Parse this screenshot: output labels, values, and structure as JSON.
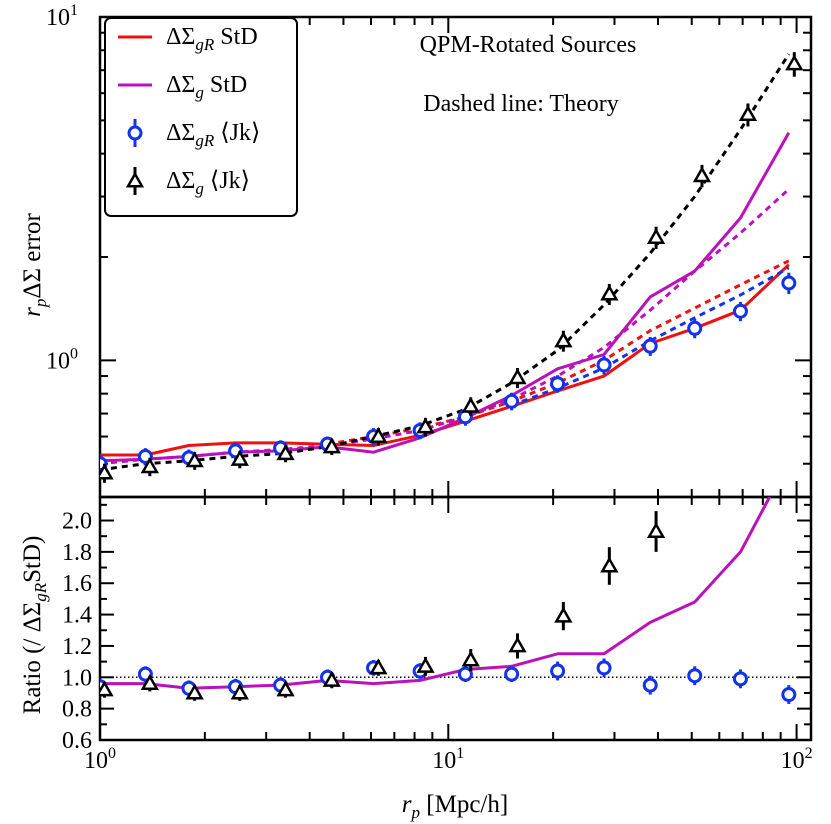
{
  "chart_data": [
    {
      "type": "line",
      "xscale": "log",
      "yscale": "log",
      "xlim": [
        1,
        110
      ],
      "ylim": [
        0.4,
        10
      ],
      "ylabel": "r_pΔΣ error",
      "ytick_labels": [
        {
          "base": "10",
          "exp": "0",
          "value": 1
        },
        {
          "base": "10",
          "exp": "1",
          "value": 10
        }
      ],
      "annotations": [
        "QPM-Rotated Sources",
        "Dashed line: Theory"
      ],
      "legend_position": "top-left",
      "legend": [
        {
          "label": "ΔΣ",
          "sub": "gR",
          "tail": " StD",
          "color": "#ee1111",
          "marker": "line"
        },
        {
          "label": "ΔΣ",
          "sub": "g",
          "tail": " StD",
          "color": "#bb11bb",
          "marker": "line"
        },
        {
          "label": "ΔΣ",
          "sub": "gR",
          "tail": " ⟨Jk⟩",
          "color": "#1133ee",
          "marker": "circle"
        },
        {
          "label": "ΔΣ",
          "sub": "g",
          "tail": " ⟨Jk⟩",
          "color": "#000000",
          "marker": "triangle"
        }
      ],
      "series": [
        {
          "name": "ΔΣgR StD",
          "style": "solid",
          "color": "#ee1111",
          "x": [
            1.0,
            1.35,
            1.8,
            2.45,
            3.3,
            4.5,
            6.1,
            8.3,
            11.2,
            15.2,
            20.6,
            28,
            38,
            51,
            69,
            95
          ],
          "y": [
            0.53,
            0.53,
            0.565,
            0.575,
            0.575,
            0.57,
            0.565,
            0.605,
            0.665,
            0.735,
            0.815,
            0.9,
            1.12,
            1.24,
            1.4,
            1.9
          ]
        },
        {
          "name": "ΔΣg StD",
          "style": "solid",
          "color": "#bb11bb",
          "x": [
            1.0,
            1.35,
            1.8,
            2.45,
            3.3,
            4.5,
            6.1,
            8.3,
            11.2,
            15.2,
            20.6,
            28,
            38,
            51,
            69,
            95
          ],
          "y": [
            0.51,
            0.515,
            0.525,
            0.54,
            0.545,
            0.56,
            0.54,
            0.595,
            0.68,
            0.79,
            0.945,
            1.04,
            1.53,
            1.82,
            2.6,
            4.6
          ]
        },
        {
          "name": "ΔΣgR Theory",
          "style": "dashed",
          "color": "#ee1111",
          "x": [
            4.5,
            6.1,
            8.3,
            11.2,
            15.2,
            20.6,
            28,
            38,
            51,
            69,
            95
          ],
          "y": [
            0.57,
            0.6,
            0.635,
            0.685,
            0.76,
            0.86,
            1.0,
            1.22,
            1.42,
            1.66,
            1.95
          ]
        },
        {
          "name": "ΔΣg Theory",
          "style": "dashed",
          "color": "#bb11bb",
          "x": [
            1.0,
            1.35,
            1.8,
            2.45,
            3.3,
            4.5,
            6.1,
            8.3,
            11.2,
            15.2,
            20.6,
            28,
            38,
            51,
            69,
            95
          ],
          "y": [
            0.5,
            0.515,
            0.525,
            0.54,
            0.55,
            0.565,
            0.59,
            0.625,
            0.685,
            0.77,
            0.9,
            1.09,
            1.4,
            1.82,
            2.35,
            3.15
          ]
        },
        {
          "name": "ΔΣgR Theory (blue)",
          "style": "dashed",
          "color": "#1133ee",
          "x": [
            15.2,
            20.6,
            28,
            38,
            51,
            69,
            95
          ],
          "y": [
            0.74,
            0.83,
            0.95,
            1.14,
            1.33,
            1.55,
            1.86
          ]
        },
        {
          "name": "ΔΣg Theory (black)",
          "style": "dashed",
          "color": "#000000",
          "x": [
            1.0,
            1.35,
            1.8,
            2.45,
            3.3,
            4.5,
            6.1,
            8.3,
            11.2,
            15.2,
            20.6,
            28,
            38,
            51,
            69,
            95
          ],
          "y": [
            0.48,
            0.5,
            0.51,
            0.525,
            0.535,
            0.56,
            0.6,
            0.645,
            0.72,
            0.86,
            1.07,
            1.45,
            2.05,
            3.0,
            4.7,
            7.8
          ]
        },
        {
          "name": "ΔΣgR Jk",
          "style": "circle",
          "color": "#1133ee",
          "x": [
            1.0,
            1.35,
            1.8,
            2.45,
            3.3,
            4.5,
            6.1,
            8.3,
            11.2,
            15.2,
            20.6,
            28,
            38,
            51,
            69,
            95
          ],
          "y": [
            0.5,
            0.525,
            0.52,
            0.545,
            0.555,
            0.57,
            0.6,
            0.625,
            0.685,
            0.76,
            0.855,
            0.97,
            1.1,
            1.24,
            1.39,
            1.68
          ],
          "err": [
            0.03,
            0.03,
            0.03,
            0.03,
            0.03,
            0.03,
            0.035,
            0.035,
            0.04,
            0.045,
            0.05,
            0.06,
            0.07,
            0.08,
            0.09,
            0.12
          ]
        },
        {
          "name": "ΔΣg Jk",
          "style": "triangle",
          "color": "#000000",
          "x": [
            1.03,
            1.39,
            1.87,
            2.52,
            3.41,
            4.63,
            6.3,
            8.6,
            11.6,
            15.8,
            21.4,
            29,
            39.5,
            53.5,
            72.5,
            98.5
          ],
          "y": [
            0.47,
            0.49,
            0.51,
            0.515,
            0.535,
            0.56,
            0.6,
            0.64,
            0.735,
            0.89,
            1.14,
            1.56,
            2.28,
            3.45,
            5.2,
            7.3
          ],
          "err": [
            0.03,
            0.03,
            0.03,
            0.03,
            0.03,
            0.03,
            0.035,
            0.04,
            0.045,
            0.06,
            0.08,
            0.11,
            0.17,
            0.26,
            0.4,
            0.6
          ]
        }
      ]
    },
    {
      "type": "line",
      "xscale": "log",
      "xlim": [
        1,
        110
      ],
      "ylim": [
        0.6,
        2.15
      ],
      "xlabel": "r_p [Mpc/h]",
      "ylabel": "Ratio (/ ΔΣgRStD)",
      "xtick_labels": [
        {
          "base": "10",
          "exp": "0",
          "value": 1
        },
        {
          "base": "10",
          "exp": "1",
          "value": 10
        },
        {
          "base": "10",
          "exp": "2",
          "value": 100
        }
      ],
      "ytick_labels": [
        "0.6",
        "0.8",
        "1.0",
        "1.2",
        "1.4",
        "1.6",
        "1.8",
        "2.0"
      ],
      "reference_line": 1.0,
      "series": [
        {
          "name": "ΔΣg StD ratio",
          "style": "solid",
          "color": "#bb11bb",
          "x": [
            1.0,
            1.35,
            1.8,
            2.45,
            3.3,
            4.5,
            6.1,
            8.3,
            11.2,
            15.2,
            20.6,
            28,
            38,
            51,
            69,
            95
          ],
          "y": [
            0.96,
            0.96,
            0.93,
            0.94,
            0.95,
            0.98,
            0.96,
            0.98,
            1.05,
            1.07,
            1.15,
            1.15,
            1.35,
            1.48,
            1.8,
            2.38
          ]
        },
        {
          "name": "ΔΣgR Jk ratio",
          "style": "circle",
          "color": "#1133ee",
          "x": [
            1.0,
            1.35,
            1.8,
            2.45,
            3.3,
            4.5,
            6.1,
            8.3,
            11.2,
            15.2,
            20.6,
            28,
            38,
            51,
            69,
            95
          ],
          "y": [
            0.94,
            1.02,
            0.93,
            0.94,
            0.95,
            1.0,
            1.06,
            1.04,
            1.02,
            1.02,
            1.04,
            1.06,
            0.95,
            1.01,
            0.99,
            0.89
          ],
          "err": [
            0.05,
            0.05,
            0.05,
            0.05,
            0.05,
            0.05,
            0.05,
            0.05,
            0.05,
            0.05,
            0.06,
            0.06,
            0.06,
            0.06,
            0.06,
            0.06
          ]
        },
        {
          "name": "ΔΣg Jk ratio",
          "style": "triangle",
          "color": "#000000",
          "x": [
            1.03,
            1.39,
            1.87,
            2.52,
            3.41,
            4.63,
            6.3,
            8.6,
            11.6,
            15.8,
            21.4,
            29,
            39.5
          ],
          "y": [
            0.92,
            0.96,
            0.9,
            0.9,
            0.92,
            0.98,
            1.06,
            1.07,
            1.11,
            1.2,
            1.39,
            1.71,
            1.93
          ],
          "err": [
            0.05,
            0.05,
            0.05,
            0.05,
            0.05,
            0.05,
            0.05,
            0.06,
            0.07,
            0.08,
            0.09,
            0.12,
            0.13
          ]
        }
      ]
    }
  ]
}
